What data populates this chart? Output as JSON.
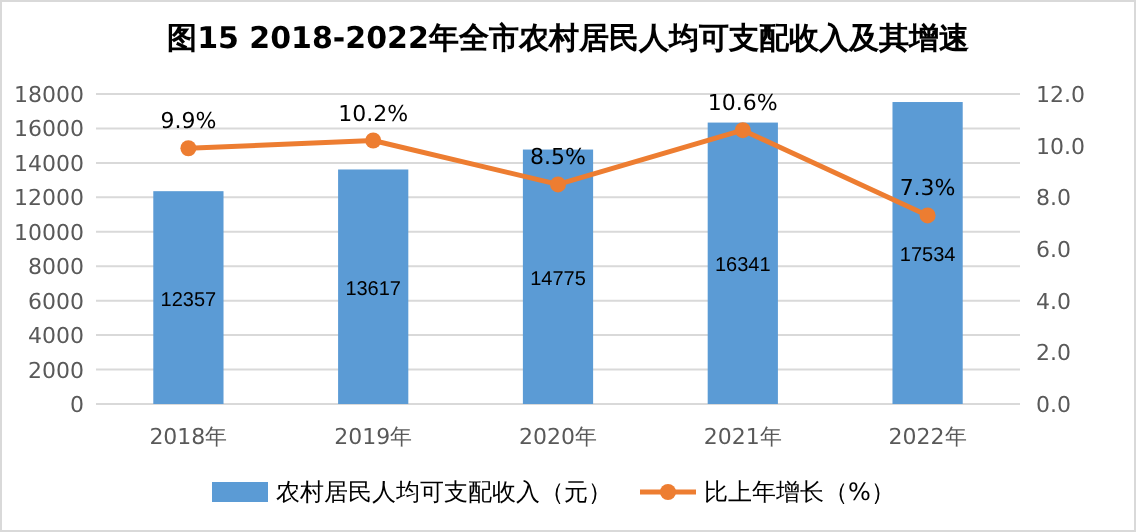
{
  "chart_data": {
    "type": "bar",
    "title": "图15   2018-2022年全市农村居民人均可支配收入及其增速",
    "categories": [
      "2018年",
      "2019年",
      "2020年",
      "2021年",
      "2022年"
    ],
    "series": [
      {
        "name": "农村居民人均可支配收入（元）",
        "color": "#5b9bd5",
        "values": [
          12357,
          13617,
          14775,
          16341,
          17534
        ],
        "value_labels": [
          "12357",
          "13617",
          "14775",
          "16341",
          "17534"
        ]
      },
      {
        "name": "比上年增长（%）",
        "type": "line",
        "axis": "y2",
        "color": "#ed7d31",
        "marker": "circle",
        "values": [
          9.9,
          10.2,
          8.5,
          10.6,
          7.3
        ],
        "value_labels": [
          "9.9%",
          "10.2%",
          "8.5%",
          "10.6%",
          "7.3%"
        ]
      }
    ],
    "ylim": [
      0,
      18000
    ],
    "yticks": [
      0,
      2000,
      4000,
      6000,
      8000,
      10000,
      12000,
      14000,
      16000,
      18000
    ],
    "y2lim": [
      0,
      12
    ],
    "y2ticks": [
      {
        "value": 0,
        "label": "0.0"
      },
      {
        "value": 2,
        "label": "2.0"
      },
      {
        "value": 4,
        "label": "4.0"
      },
      {
        "value": 6,
        "label": "6.0"
      },
      {
        "value": 8,
        "label": "8.0"
      },
      {
        "value": 10,
        "label": "10.0"
      },
      {
        "value": 12,
        "label": "12.0"
      }
    ],
    "grid": "y",
    "legend": "bottom"
  }
}
